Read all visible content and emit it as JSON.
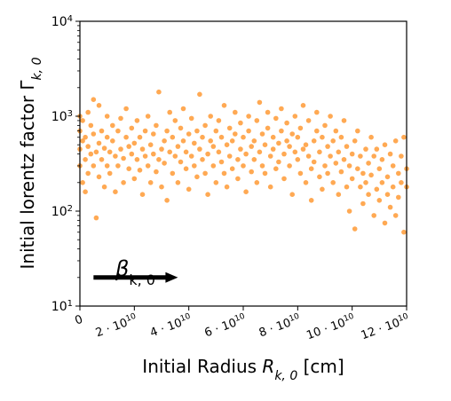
{
  "chart_data": {
    "type": "scatter",
    "xlabel": "Initial Radius R_{k,0} [cm]",
    "ylabel": "Initial lorentz factor Γ_{k,0}",
    "xlim": [
      0,
      120000000000.0
    ],
    "ylim": [
      10,
      10000
    ],
    "yscale": "log",
    "grid": false,
    "legend": "none",
    "x_ticks": [
      {
        "value": 0,
        "base": "0",
        "exp": ""
      },
      {
        "value": 20000000000.0,
        "base": "2 · 10",
        "exp": "10"
      },
      {
        "value": 40000000000.0,
        "base": "4 · 10",
        "exp": "10"
      },
      {
        "value": 60000000000.0,
        "base": "6 · 10",
        "exp": "10"
      },
      {
        "value": 80000000000.0,
        "base": "8 · 10",
        "exp": "10"
      },
      {
        "value": 100000000000.0,
        "base": "10 · 10",
        "exp": "10"
      },
      {
        "value": 120000000000.0,
        "base": "12 · 10",
        "exp": "10"
      }
    ],
    "y_ticks": [
      {
        "value": 10,
        "base": "10",
        "exp": "1"
      },
      {
        "value": 100,
        "base": "10",
        "exp": "2"
      },
      {
        "value": 1000,
        "base": "10",
        "exp": "3"
      },
      {
        "value": 10000,
        "base": "10",
        "exp": "4"
      }
    ],
    "series": [
      {
        "color": "#ff8c1a",
        "points": [
          [
            0.0,
            300
          ],
          [
            0.0,
            450
          ],
          [
            0.0,
            700
          ],
          [
            0.0,
            1000
          ],
          [
            1000000000.0,
            200
          ],
          [
            1000000000.0,
            550
          ],
          [
            1000000000.0,
            900
          ],
          [
            2000000000.0,
            160
          ],
          [
            2000000000.0,
            350
          ],
          [
            2000000000.0,
            600
          ],
          [
            3000000000.0,
            250
          ],
          [
            3000000000.0,
            480
          ],
          [
            3000000000.0,
            1100
          ],
          [
            4000000000.0,
            400
          ],
          [
            4000000000.0,
            800
          ],
          [
            5000000000.0,
            300
          ],
          [
            5000000000.0,
            650
          ],
          [
            5000000000.0,
            1500
          ],
          [
            6000000000.0,
            85
          ],
          [
            6000000000.0,
            420
          ],
          [
            7000000000.0,
            230
          ],
          [
            7000000000.0,
            520
          ],
          [
            7000000000.0,
            1300
          ],
          [
            8000000000.0,
            350
          ],
          [
            8000000000.0,
            700
          ],
          [
            9000000000.0,
            180
          ],
          [
            9000000000.0,
            460
          ],
          [
            10000000000.0,
            300
          ],
          [
            10000000000.0,
            600
          ],
          [
            10000000000.0,
            1000
          ],
          [
            11000000000.0,
            250
          ],
          [
            11000000000.0,
            420
          ],
          [
            12000000000.0,
            550
          ],
          [
            12000000000.0,
            800
          ],
          [
            13000000000.0,
            160
          ],
          [
            13000000000.0,
            380
          ],
          [
            14000000000.0,
            300
          ],
          [
            14000000000.0,
            700
          ],
          [
            15000000000.0,
            450
          ],
          [
            15000000000.0,
            950
          ],
          [
            16000000000.0,
            200
          ],
          [
            16000000000.0,
            360
          ],
          [
            17000000000.0,
            600
          ],
          [
            17000000000.0,
            1200
          ],
          [
            18000000000.0,
            280
          ],
          [
            18000000000.0,
            480
          ],
          [
            19000000000.0,
            400
          ],
          [
            19000000000.0,
            750
          ],
          [
            20000000000.0,
            220
          ],
          [
            20000000000.0,
            520
          ],
          [
            21000000000.0,
            350
          ],
          [
            21000000000.0,
            900
          ],
          [
            22000000000.0,
            600
          ],
          [
            22000000000.0,
            270
          ],
          [
            23000000000.0,
            450
          ],
          [
            23000000000.0,
            150
          ],
          [
            24000000000.0,
            380
          ],
          [
            24000000000.0,
            700
          ],
          [
            25000000000.0,
            300
          ],
          [
            25000000000.0,
            1000
          ],
          [
            26000000000.0,
            500
          ],
          [
            26000000000.0,
            200
          ],
          [
            27000000000.0,
            400
          ],
          [
            27000000000.0,
            650
          ],
          [
            28000000000.0,
            260
          ],
          [
            28000000000.0,
            800
          ],
          [
            29000000000.0,
            350
          ],
          [
            29000000000.0,
            1800
          ],
          [
            30000000000.0,
            450
          ],
          [
            30000000000.0,
            180
          ],
          [
            31000000000.0,
            550
          ],
          [
            31000000000.0,
            320
          ],
          [
            32000000000.0,
            700
          ],
          [
            32000000000.0,
            130
          ],
          [
            33000000000.0,
            420
          ],
          [
            33000000000.0,
            1100
          ],
          [
            34000000000.0,
            250
          ],
          [
            34000000000.0,
            600
          ],
          [
            35000000000.0,
            380
          ],
          [
            35000000000.0,
            900
          ],
          [
            36000000000.0,
            200
          ],
          [
            36000000000.0,
            480
          ],
          [
            37000000000.0,
            330
          ],
          [
            37000000000.0,
            750
          ],
          [
            38000000000.0,
            550
          ],
          [
            38000000000.0,
            1200
          ],
          [
            39000000000.0,
            280
          ],
          [
            39000000000.0,
            420
          ],
          [
            40000000000.0,
            650
          ],
          [
            40000000000.0,
            170
          ],
          [
            41000000000.0,
            380
          ],
          [
            41000000000.0,
            950
          ],
          [
            42000000000.0,
            300
          ],
          [
            42000000000.0,
            520
          ],
          [
            43000000000.0,
            700
          ],
          [
            43000000000.0,
            230
          ],
          [
            44000000000.0,
            450
          ],
          [
            44000000000.0,
            1700
          ],
          [
            45000000000.0,
            350
          ],
          [
            45000000000.0,
            600
          ],
          [
            46000000000.0,
            250
          ],
          [
            46000000000.0,
            800
          ],
          [
            47000000000.0,
            400
          ],
          [
            47000000000.0,
            150
          ],
          [
            48000000000.0,
            550
          ],
          [
            48000000000.0,
            1000
          ],
          [
            49000000000.0,
            300
          ],
          [
            49000000000.0,
            480
          ],
          [
            50000000000.0,
            700
          ],
          [
            50000000000.0,
            200
          ],
          [
            51000000000.0,
            420
          ],
          [
            51000000000.0,
            900
          ],
          [
            52000000000.0,
            330
          ],
          [
            52000000000.0,
            600
          ],
          [
            53000000000.0,
            250
          ],
          [
            53000000000.0,
            1300
          ],
          [
            54000000000.0,
            500
          ],
          [
            54000000000.0,
            180
          ],
          [
            55000000000.0,
            380
          ],
          [
            55000000000.0,
            750
          ],
          [
            56000000000.0,
            280
          ],
          [
            56000000000.0,
            550
          ],
          [
            57000000000.0,
            650
          ],
          [
            57000000000.0,
            1100
          ],
          [
            58000000000.0,
            350
          ],
          [
            58000000000.0,
            220
          ],
          [
            59000000000.0,
            450
          ],
          [
            59000000000.0,
            850
          ],
          [
            60000000000.0,
            300
          ],
          [
            60000000000.0,
            600
          ],
          [
            61000000000.0,
            400
          ],
          [
            61000000000.0,
            160
          ],
          [
            62000000000.0,
            700
          ],
          [
            62000000000.0,
            1000
          ],
          [
            63000000000.0,
            260
          ],
          [
            63000000000.0,
            480
          ],
          [
            64000000000.0,
            550
          ],
          [
            64000000000.0,
            350
          ],
          [
            65000000000.0,
            900
          ],
          [
            65000000000.0,
            200
          ],
          [
            66000000000.0,
            420
          ],
          [
            66000000000.0,
            1400
          ],
          [
            67000000000.0,
            300
          ],
          [
            67000000000.0,
            650
          ],
          [
            68000000000.0,
            500
          ],
          [
            68000000000.0,
            250
          ],
          [
            69000000000.0,
            750
          ],
          [
            69000000000.0,
            1100
          ],
          [
            70000000000.0,
            380
          ],
          [
            70000000000.0,
            180
          ],
          [
            71000000000.0,
            600
          ],
          [
            71000000000.0,
            450
          ],
          [
            72000000000.0,
            280
          ],
          [
            72000000000.0,
            950
          ],
          [
            73000000000.0,
            520
          ],
          [
            73000000000.0,
            330
          ],
          [
            74000000000.0,
            700
          ],
          [
            74000000000.0,
            1200
          ],
          [
            75000000000.0,
            400
          ],
          [
            75000000000.0,
            220
          ],
          [
            76000000000.0,
            550
          ],
          [
            76000000000.0,
            850
          ],
          [
            77000000000.0,
            300
          ],
          [
            77000000000.0,
            480
          ],
          [
            78000000000.0,
            650
          ],
          [
            78000000000.0,
            150
          ],
          [
            79000000000.0,
            420
          ],
          [
            79000000000.0,
            1000
          ],
          [
            80000000000.0,
            350
          ],
          [
            80000000000.0,
            600
          ],
          [
            81000000000.0,
            250
          ],
          [
            81000000000.0,
            750
          ],
          [
            82000000000.0,
            450
          ],
          [
            82000000000.0,
            1300
          ],
          [
            83000000000.0,
            200
          ],
          [
            83000000000.0,
            500
          ],
          [
            84000000000.0,
            380
          ],
          [
            84000000000.0,
            900
          ],
          [
            85000000000.0,
            280
          ],
          [
            85000000000.0,
            130
          ],
          [
            86000000000.0,
            550
          ],
          [
            86000000000.0,
            330
          ],
          [
            87000000000.0,
            700
          ],
          [
            87000000000.0,
            1100
          ],
          [
            88000000000.0,
            420
          ],
          [
            88000000000.0,
            230
          ],
          [
            89000000000.0,
            600
          ],
          [
            89000000000.0,
            170
          ],
          [
            90000000000.0,
            300
          ],
          [
            90000000000.0,
            800
          ],
          [
            91000000000.0,
            480
          ],
          [
            91000000000.0,
            250
          ],
          [
            92000000000.0,
            380
          ],
          [
            92000000000.0,
            1000
          ],
          [
            93000000000.0,
            200
          ],
          [
            93000000000.0,
            550
          ],
          [
            94000000000.0,
            320
          ],
          [
            94000000000.0,
            700
          ],
          [
            95000000000.0,
            420
          ],
          [
            95000000000.0,
            150
          ],
          [
            96000000000.0,
            260
          ],
          [
            96000000000.0,
            600
          ],
          [
            97000000000.0,
            350
          ],
          [
            97000000000.0,
            900
          ],
          [
            98000000000.0,
            180
          ],
          [
            98000000000.0,
            480
          ],
          [
            99000000000.0,
            300
          ],
          [
            99000000000.0,
            100
          ],
          [
            100000000000.0,
            400
          ],
          [
            100000000000.0,
            220
          ],
          [
            101000000000.0,
            550
          ],
          [
            101000000000.0,
            65
          ],
          [
            102000000000.0,
            280
          ],
          [
            102000000000.0,
            700
          ],
          [
            103000000000.0,
            180
          ],
          [
            103000000000.0,
            380
          ],
          [
            104000000000.0,
            250
          ],
          [
            104000000000.0,
            120
          ],
          [
            105000000000.0,
            450
          ],
          [
            105000000000.0,
            200
          ],
          [
            106000000000.0,
            320
          ],
          [
            106000000000.0,
            150
          ],
          [
            107000000000.0,
            600
          ],
          [
            107000000000.0,
            240
          ],
          [
            108000000000.0,
            380
          ],
          [
            108000000000.0,
            90
          ],
          [
            109000000000.0,
            170
          ],
          [
            109000000000.0,
            450
          ],
          [
            110000000000.0,
            280
          ],
          [
            110000000000.0,
            130
          ],
          [
            111000000000.0,
            350
          ],
          [
            111000000000.0,
            200
          ],
          [
            112000000000.0,
            500
          ],
          [
            112000000000.0,
            75
          ],
          [
            113000000000.0,
            230
          ],
          [
            113000000000.0,
            150
          ],
          [
            114000000000.0,
            400
          ],
          [
            114000000000.0,
            110
          ],
          [
            115000000000.0,
            300
          ],
          [
            115000000000.0,
            180
          ],
          [
            116000000000.0,
            550
          ],
          [
            116000000000.0,
            90
          ],
          [
            117000000000.0,
            250
          ],
          [
            117000000000.0,
            140
          ],
          [
            118000000000.0,
            380
          ],
          [
            118000000000.0,
            200
          ],
          [
            119000000000.0,
            600
          ],
          [
            119000000000.0,
            60
          ],
          [
            120000000000.0,
            180
          ],
          [
            120000000000.0,
            280
          ]
        ]
      }
    ],
    "annotation": {
      "text": "β",
      "subscript": "k, 0",
      "arrow": {
        "from": [
          5000000000.0,
          20
        ],
        "to": [
          36000000000.0,
          20
        ]
      }
    }
  }
}
